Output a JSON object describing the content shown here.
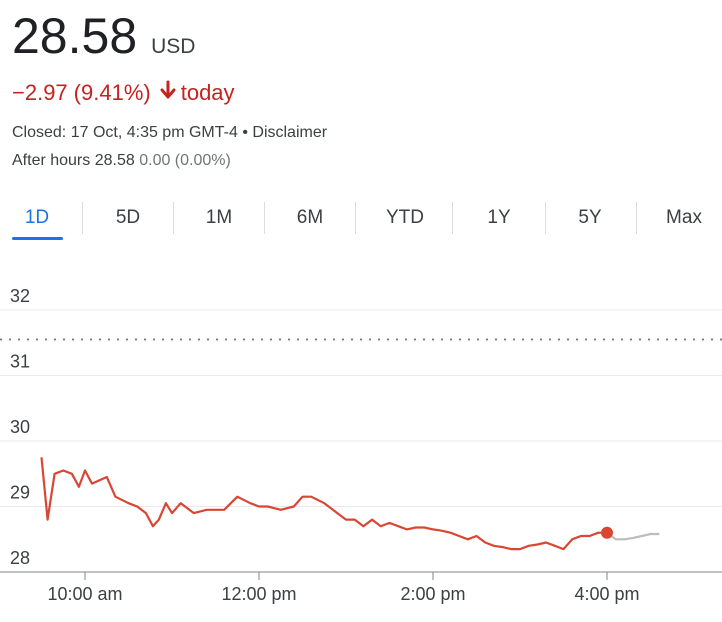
{
  "quote": {
    "price": "28.58",
    "currency": "USD",
    "change": "−2.97",
    "change_percent": "(9.41%)",
    "change_period": "today",
    "change_direction": "down",
    "closed_text": "Closed: 17 Oct, 4:35 pm GMT-4",
    "separator": "•",
    "disclaimer": "Disclaimer",
    "after_hours_label": "After hours",
    "after_hours_price": "28.58",
    "after_hours_change": "0.00 (0.00%)"
  },
  "tabs": [
    {
      "label": "1D",
      "active": true
    },
    {
      "label": "5D",
      "active": false
    },
    {
      "label": "1M",
      "active": false
    },
    {
      "label": "6M",
      "active": false
    },
    {
      "label": "YTD",
      "active": false
    },
    {
      "label": "1Y",
      "active": false
    },
    {
      "label": "5Y",
      "active": false
    },
    {
      "label": "Max",
      "active": false
    }
  ],
  "colors": {
    "down": "#c5221f",
    "line": "#d94633",
    "after_hours_line": "#bdbdbd",
    "accent": "#1a73e8",
    "grid": "#e8eaed"
  },
  "chart_data": {
    "type": "line",
    "title": "",
    "xlabel": "",
    "ylabel": "",
    "ylim": [
      28,
      32
    ],
    "yticks": [
      "28",
      "29",
      "30",
      "31",
      "32"
    ],
    "xticks": [
      {
        "label": "10:00 am",
        "x": 10.0
      },
      {
        "label": "12:00 pm",
        "x": 12.0
      },
      {
        "label": "2:00 pm",
        "x": 14.0
      },
      {
        "label": "4:00 pm",
        "x": 16.0
      }
    ],
    "previous_close": 31.55,
    "grid": true,
    "series": [
      {
        "session": "regular",
        "x": [
          9.5,
          9.57,
          9.65,
          9.75,
          9.85,
          9.93,
          10.0,
          10.08,
          10.25,
          10.35,
          10.5,
          10.6,
          10.7,
          10.78,
          10.85,
          10.93,
          11.0,
          11.1,
          11.25,
          11.4,
          11.5,
          11.6,
          11.75,
          11.9,
          12.0,
          12.1,
          12.25,
          12.4,
          12.5,
          12.6,
          12.75,
          12.9,
          13.0,
          13.1,
          13.2,
          13.3,
          13.4,
          13.5,
          13.6,
          13.7,
          13.8,
          13.9,
          14.0,
          14.1,
          14.2,
          14.3,
          14.4,
          14.5,
          14.6,
          14.7,
          14.8,
          14.9,
          15.0,
          15.1,
          15.2,
          15.3,
          15.4,
          15.5,
          15.6,
          15.7,
          15.8,
          15.9,
          16.0
        ],
        "values": [
          29.75,
          28.8,
          29.5,
          29.55,
          29.5,
          29.3,
          29.55,
          29.35,
          29.45,
          29.15,
          29.05,
          29.0,
          28.9,
          28.7,
          28.8,
          29.05,
          28.9,
          29.05,
          28.9,
          28.95,
          28.95,
          28.95,
          29.15,
          29.05,
          29.0,
          29.0,
          28.95,
          29.0,
          29.15,
          29.15,
          29.05,
          28.9,
          28.8,
          28.8,
          28.7,
          28.8,
          28.7,
          28.75,
          28.7,
          28.65,
          28.68,
          28.68,
          28.65,
          28.63,
          28.6,
          28.55,
          28.5,
          28.55,
          28.45,
          28.4,
          28.38,
          28.35,
          28.35,
          28.4,
          28.42,
          28.45,
          28.4,
          28.35,
          28.5,
          28.55,
          28.55,
          28.6,
          28.6
        ]
      },
      {
        "session": "after_hours",
        "x": [
          16.0,
          16.1,
          16.2,
          16.3,
          16.4,
          16.5,
          16.6
        ],
        "values": [
          28.6,
          28.5,
          28.5,
          28.52,
          28.55,
          28.58,
          28.58
        ]
      }
    ],
    "marker": {
      "x": 16.0,
      "y": 28.6
    }
  }
}
